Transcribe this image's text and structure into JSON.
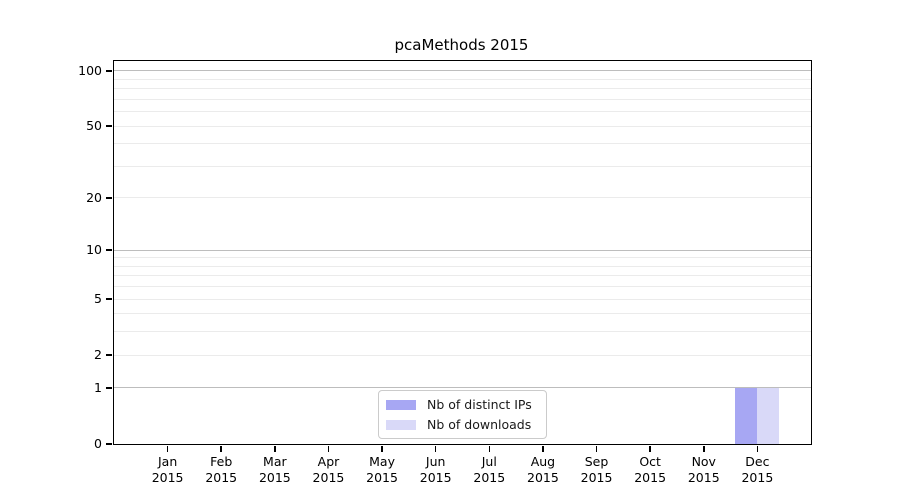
{
  "figure": {
    "background": "#ffffff"
  },
  "chart_data": {
    "type": "bar",
    "title": "pcaMethods 2015",
    "categories": [
      "Jan",
      "Feb",
      "Mar",
      "Apr",
      "May",
      "Jun",
      "Jul",
      "Aug",
      "Sep",
      "Oct",
      "Nov",
      "Dec"
    ],
    "year": "2015",
    "series": [
      {
        "name": "Nb of distinct IPs",
        "color": "#a7a7f3",
        "values": [
          0,
          0,
          0,
          0,
          0,
          0,
          0,
          0,
          0,
          0,
          0,
          1
        ]
      },
      {
        "name": "Nb of downloads",
        "color": "#d9d9f8",
        "values": [
          0,
          0,
          0,
          0,
          0,
          0,
          0,
          0,
          0,
          0,
          0,
          1
        ]
      }
    ],
    "xlabel": "",
    "ylabel": "",
    "scale": "log1p",
    "ylim": [
      0,
      113
    ],
    "yticks_labeled": [
      0,
      1,
      2,
      5,
      10,
      20,
      50,
      100
    ],
    "gridlines_major": [
      1,
      10,
      100
    ],
    "gridlines_minor": [
      2,
      3,
      4,
      5,
      6,
      7,
      8,
      9,
      20,
      30,
      40,
      50,
      60,
      70,
      80,
      90
    ],
    "grid": "horizontal",
    "legend": {
      "position": "bottom-center",
      "entries": [
        "Nb of distinct IPs",
        "Nb of downloads"
      ]
    }
  },
  "colors": {
    "spine": "#000000",
    "major_grid": "#bdbdbd",
    "minor_grid": "#ebebeb",
    "legend_border": "#cbcbcb",
    "text": "#000000"
  }
}
